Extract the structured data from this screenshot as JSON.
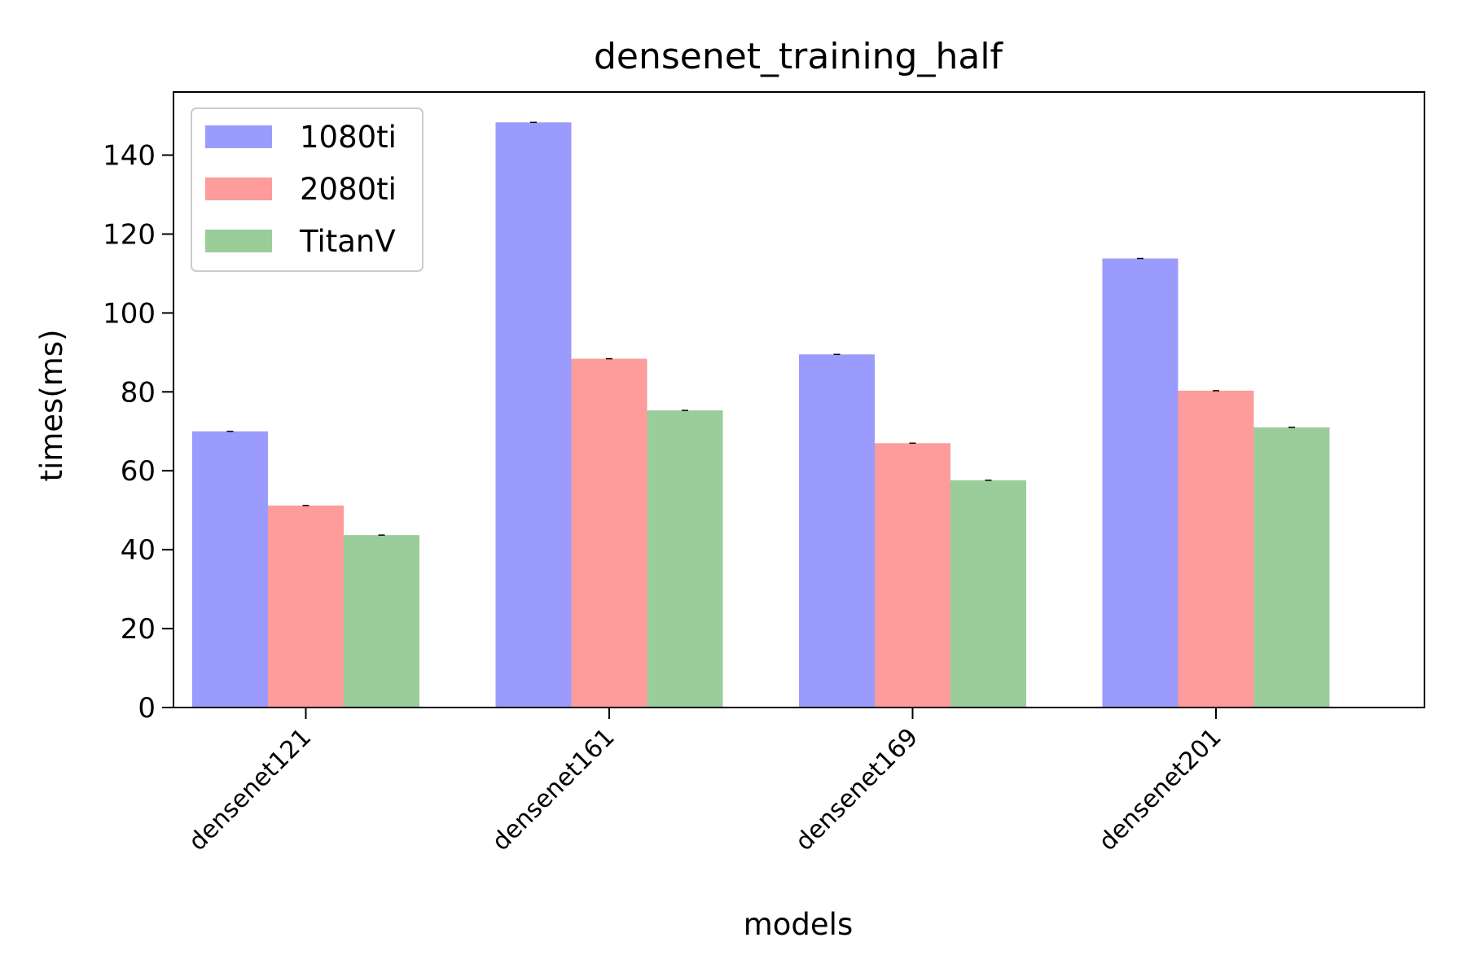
{
  "chart_data": {
    "type": "bar",
    "title": "densenet_training_half",
    "xlabel": "models",
    "ylabel": "times(ms)",
    "categories": [
      "densenet121",
      "densenet161",
      "densenet169",
      "densenet201"
    ],
    "series": [
      {
        "name": "1080ti",
        "color": "#9b9bfd",
        "values": [
          70.0,
          148.3,
          89.5,
          113.8
        ]
      },
      {
        "name": "2080ti",
        "color": "#fe9b9b",
        "values": [
          51.2,
          88.4,
          67.0,
          80.3
        ]
      },
      {
        "name": "TitanV",
        "color": "#9bcd9b",
        "values": [
          43.7,
          75.3,
          57.6,
          71.0
        ]
      }
    ],
    "ylim": [
      0,
      156
    ],
    "yticks": [
      0,
      20,
      40,
      60,
      80,
      100,
      120,
      140
    ],
    "error_bars": true,
    "grid": false,
    "legend_position": "top-left"
  }
}
